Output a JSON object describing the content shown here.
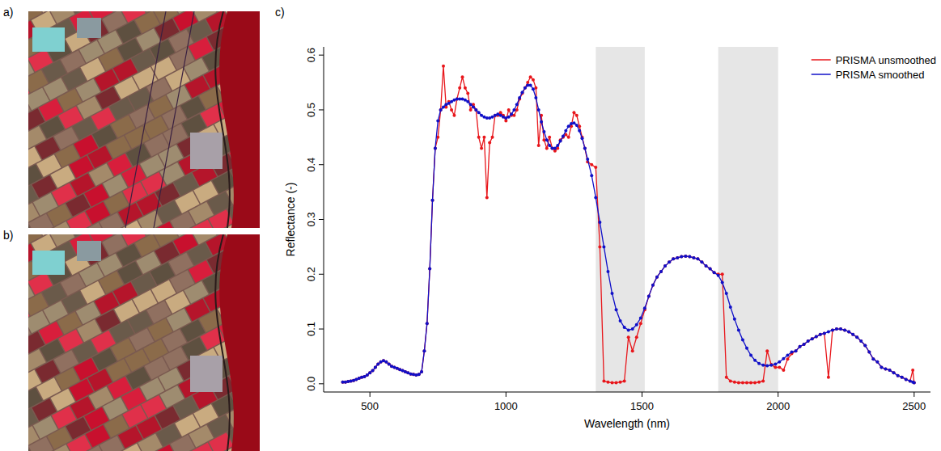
{
  "panel_labels": [
    "a)",
    "b)",
    "c)"
  ],
  "chart_data": {
    "type": "line",
    "x_label": "Wavelength (nm)",
    "y_label": "Reflectance (-)",
    "xlim": [
      330,
      2560
    ],
    "ylim": [
      -0.015,
      0.615
    ],
    "xticks": [
      500,
      1000,
      1500,
      2000,
      2500
    ],
    "yticks": [
      {
        "value": 0,
        "label": "0.0"
      },
      0.1,
      0.2,
      0.3,
      0.4,
      0.5,
      0.6
    ],
    "grid": false,
    "legend": "top-right",
    "shaded_bands": [
      [
        1330,
        1510
      ],
      [
        1780,
        2000
      ]
    ],
    "x": [
      400,
      410,
      420,
      430,
      440,
      450,
      460,
      470,
      480,
      490,
      500,
      510,
      520,
      530,
      540,
      550,
      560,
      570,
      580,
      590,
      600,
      610,
      620,
      630,
      640,
      650,
      660,
      670,
      680,
      690,
      700,
      710,
      720,
      730,
      740,
      750,
      760,
      770,
      780,
      790,
      800,
      810,
      820,
      830,
      840,
      850,
      860,
      870,
      880,
      890,
      900,
      910,
      920,
      930,
      940,
      950,
      960,
      970,
      980,
      990,
      1000,
      1010,
      1020,
      1030,
      1040,
      1050,
      1060,
      1070,
      1080,
      1090,
      1100,
      1110,
      1120,
      1130,
      1140,
      1150,
      1160,
      1170,
      1180,
      1190,
      1200,
      1210,
      1220,
      1230,
      1240,
      1250,
      1260,
      1270,
      1280,
      1290,
      1300,
      1315,
      1330,
      1345,
      1360,
      1375,
      1390,
      1405,
      1420,
      1435,
      1450,
      1465,
      1480,
      1495,
      1510,
      1525,
      1540,
      1555,
      1570,
      1585,
      1600,
      1615,
      1630,
      1645,
      1660,
      1675,
      1690,
      1705,
      1720,
      1735,
      1750,
      1765,
      1780,
      1795,
      1810,
      1825,
      1840,
      1855,
      1870,
      1885,
      1900,
      1915,
      1930,
      1945,
      1960,
      1975,
      1990,
      2005,
      2020,
      2035,
      2050,
      2065,
      2080,
      2095,
      2110,
      2125,
      2140,
      2155,
      2170,
      2185,
      2200,
      2215,
      2230,
      2245,
      2260,
      2275,
      2290,
      2305,
      2320,
      2335,
      2350,
      2365,
      2380,
      2395,
      2410,
      2425,
      2440,
      2455,
      2470,
      2485,
      2495,
      2500
    ],
    "series": [
      {
        "name": "PRISMA unsmoothed",
        "color": "#e8161b",
        "marker": "circle",
        "line_style": "solid",
        "values": [
          0.003,
          0.003,
          0.004,
          0.005,
          0.006,
          0.008,
          0.01,
          0.012,
          0.013,
          0.016,
          0.02,
          0.024,
          0.03,
          0.036,
          0.04,
          0.042,
          0.04,
          0.036,
          0.032,
          0.03,
          0.028,
          0.026,
          0.024,
          0.022,
          0.02,
          0.018,
          0.017,
          0.016,
          0.017,
          0.022,
          0.06,
          0.11,
          0.21,
          0.335,
          0.43,
          0.45,
          0.5,
          0.58,
          0.505,
          0.515,
          0.5,
          0.49,
          0.52,
          0.54,
          0.56,
          0.54,
          0.53,
          0.5,
          0.51,
          0.5,
          0.45,
          0.43,
          0.45,
          0.34,
          0.44,
          0.45,
          0.49,
          0.49,
          0.495,
          0.49,
          0.48,
          0.5,
          0.49,
          0.49,
          0.5,
          0.52,
          0.53,
          0.54,
          0.55,
          0.56,
          0.555,
          0.54,
          0.435,
          0.49,
          0.445,
          0.43,
          0.45,
          0.43,
          0.425,
          0.43,
          0.445,
          0.45,
          0.455,
          0.45,
          0.47,
          0.495,
          0.49,
          0.47,
          0.45,
          0.43,
          0.405,
          0.4,
          0.395,
          0.25,
          0.005,
          0.003,
          0.002,
          0.002,
          0.003,
          0.005,
          0.085,
          0.06,
          0.085,
          0.11,
          0.135,
          0.16,
          0.18,
          0.195,
          0.205,
          0.215,
          0.222,
          0.228,
          0.23,
          0.232,
          0.233,
          0.232,
          0.23,
          0.228,
          0.222,
          0.215,
          0.21,
          0.203,
          0.2,
          0.2,
          0.012,
          0.005,
          0.003,
          0.002,
          0.002,
          0.002,
          0.002,
          0.002,
          0.003,
          0.005,
          0.06,
          0.035,
          0.03,
          0.03,
          0.025,
          0.045,
          0.055,
          0.06,
          0.068,
          0.072,
          0.078,
          0.082,
          0.086,
          0.09,
          0.092,
          0.012,
          0.098,
          0.1,
          0.1,
          0.098,
          0.095,
          0.09,
          0.085,
          0.078,
          0.07,
          0.058,
          0.045,
          0.04,
          0.03,
          0.027,
          0.025,
          0.02,
          0.015,
          0.012,
          0.008,
          0.005,
          0.025,
          0.002
        ]
      },
      {
        "name": "PRISMA smoothed",
        "color": "#1010c8",
        "marker": "circle",
        "line_style": "solid",
        "values": [
          0.003,
          0.003,
          0.004,
          0.005,
          0.006,
          0.008,
          0.01,
          0.012,
          0.013,
          0.016,
          0.02,
          0.024,
          0.03,
          0.036,
          0.04,
          0.042,
          0.04,
          0.036,
          0.032,
          0.03,
          0.028,
          0.026,
          0.024,
          0.022,
          0.02,
          0.018,
          0.017,
          0.016,
          0.017,
          0.022,
          0.06,
          0.11,
          0.21,
          0.335,
          0.43,
          0.48,
          0.5,
          0.505,
          0.51,
          0.512,
          0.515,
          0.518,
          0.52,
          0.52,
          0.52,
          0.518,
          0.515,
          0.51,
          0.505,
          0.5,
          0.495,
          0.49,
          0.487,
          0.485,
          0.485,
          0.487,
          0.49,
          0.492,
          0.49,
          0.487,
          0.485,
          0.487,
          0.492,
          0.5,
          0.51,
          0.522,
          0.532,
          0.54,
          0.545,
          0.545,
          0.538,
          0.522,
          0.5,
          0.478,
          0.46,
          0.445,
          0.435,
          0.43,
          0.43,
          0.435,
          0.443,
          0.452,
          0.462,
          0.47,
          0.475,
          0.476,
          0.472,
          0.462,
          0.448,
          0.43,
          0.41,
          0.38,
          0.34,
          0.295,
          0.25,
          0.205,
          0.165,
          0.135,
          0.115,
          0.103,
          0.098,
          0.1,
          0.108,
          0.12,
          0.138,
          0.16,
          0.18,
          0.195,
          0.205,
          0.215,
          0.222,
          0.228,
          0.23,
          0.232,
          0.233,
          0.232,
          0.23,
          0.228,
          0.222,
          0.215,
          0.21,
          0.203,
          0.198,
          0.185,
          0.165,
          0.14,
          0.118,
          0.098,
          0.08,
          0.065,
          0.052,
          0.043,
          0.037,
          0.034,
          0.033,
          0.034,
          0.036,
          0.04,
          0.046,
          0.052,
          0.058,
          0.06,
          0.068,
          0.072,
          0.078,
          0.082,
          0.086,
          0.09,
          0.092,
          0.095,
          0.098,
          0.1,
          0.1,
          0.098,
          0.095,
          0.09,
          0.085,
          0.078,
          0.07,
          0.058,
          0.045,
          0.04,
          0.03,
          0.027,
          0.025,
          0.02,
          0.015,
          0.012,
          0.008,
          0.005,
          0.003,
          0.002
        ]
      }
    ]
  }
}
